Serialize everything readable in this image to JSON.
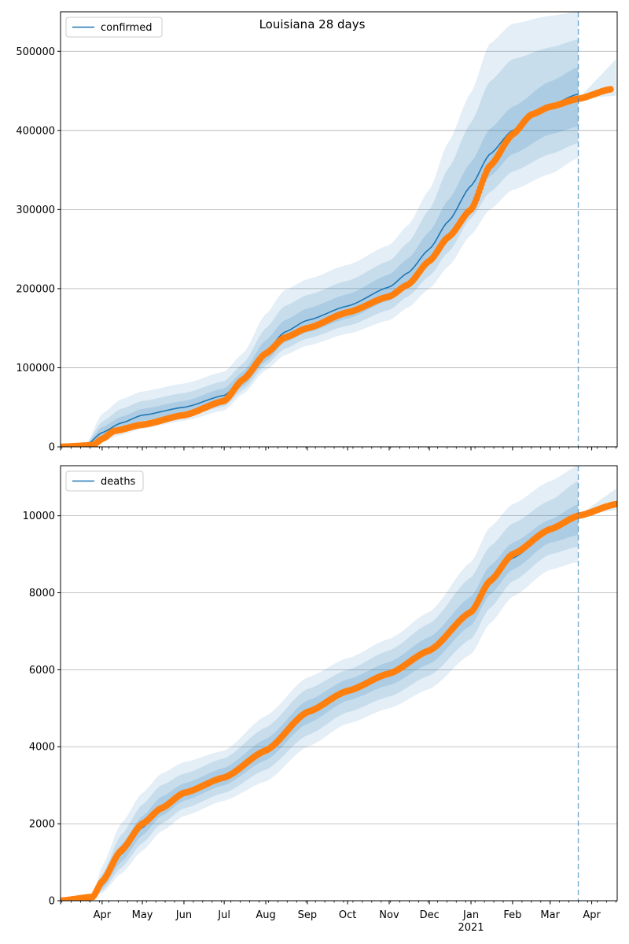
{
  "figure_title": "Louisiana 28 days",
  "colors": {
    "model": "#1f77b4",
    "observed": "#ff7f0e",
    "grid": "#b0b0b0",
    "axes": "#000000"
  },
  "chart_data": [
    {
      "type": "line",
      "title": "Louisiana 28 days",
      "legend": [
        "confirmed"
      ],
      "legend_position": "top-left",
      "grid": "horizontal",
      "ylim": [
        0,
        550000
      ],
      "yticks": [
        0,
        100000,
        200000,
        300000,
        400000,
        500000
      ],
      "ytick_labels": [
        "0",
        "100000",
        "200000",
        "300000",
        "400000",
        "500000"
      ],
      "xticks_shown": false,
      "forecast_start": "2021-03-22",
      "model": {
        "name": "confirmed",
        "x": [
          "2020-03-01",
          "2020-03-20",
          "2020-04-01",
          "2020-04-15",
          "2020-05-01",
          "2020-06-01",
          "2020-07-01",
          "2020-07-15",
          "2020-08-01",
          "2020-08-15",
          "2020-09-01",
          "2020-10-01",
          "2020-11-01",
          "2020-11-15",
          "2020-12-01",
          "2020-12-15",
          "2021-01-01",
          "2021-01-15",
          "2021-02-01",
          "2021-03-01",
          "2021-03-22"
        ],
        "y": [
          0,
          2000,
          18000,
          30000,
          40000,
          50000,
          65000,
          85000,
          120000,
          145000,
          160000,
          178000,
          202000,
          220000,
          250000,
          285000,
          330000,
          370000,
          400000,
          432000,
          446000
        ],
        "bands": [
          {
            "lo": [
              0,
              1000,
              6000,
              15000,
              23000,
              33000,
              46000,
              67000,
              97000,
              116000,
              128000,
              143000,
              160000,
              176000,
              200000,
              228000,
              268000,
              300000,
              325000,
              345000,
              365000
            ],
            "hi": [
              0,
              3500,
              42000,
              60000,
              70000,
              80000,
              95000,
              118000,
              168000,
              198000,
              212000,
              230000,
              255000,
              280000,
              325000,
              385000,
              448000,
              510000,
              535000,
              545000,
              550000
            ]
          },
          {
            "lo": [
              0,
              1300,
              10000,
              20000,
              29000,
              38000,
              51000,
              72000,
              103000,
              124000,
              137000,
              153000,
              173000,
              190000,
              216000,
              246000,
              289000,
              322000,
              348000,
              370000,
              384000
            ],
            "hi": [
              0,
              3000,
              32000,
              48000,
              58000,
              68000,
              83000,
              105000,
              150000,
              178000,
              192000,
              210000,
              235000,
              258000,
              300000,
              352000,
              410000,
              462000,
              490000,
              505000,
              515000
            ]
          },
          {
            "lo": [
              0,
              1600,
              13000,
              24000,
              33000,
              42000,
              56000,
              77000,
              108000,
              132000,
              145000,
              162000,
              185000,
              202000,
              230000,
              262000,
              307000,
              342000,
              370000,
              395000,
              405000
            ],
            "hi": [
              0,
              2500,
              25000,
              38000,
              48000,
              58000,
              74000,
              95000,
              135000,
              160000,
              175000,
              193000,
              218000,
              238000,
              272000,
              312000,
              360000,
              402000,
              430000,
              462000,
              480000
            ]
          }
        ]
      },
      "observed": {
        "x": [
          "2020-03-01",
          "2020-03-25",
          "2020-04-01",
          "2020-04-10",
          "2020-05-01",
          "2020-06-01",
          "2020-07-01",
          "2020-07-15",
          "2020-08-01",
          "2020-08-15",
          "2020-09-01",
          "2020-10-01",
          "2020-11-01",
          "2020-11-15",
          "2020-12-01",
          "2020-12-15",
          "2021-01-01",
          "2021-01-15",
          "2021-02-01",
          "2021-02-15",
          "2021-03-01",
          "2021-03-22",
          "2021-04-15"
        ],
        "y": [
          0,
          2000,
          10000,
          20000,
          28000,
          40000,
          58000,
          85000,
          118000,
          138000,
          150000,
          170000,
          190000,
          205000,
          235000,
          265000,
          300000,
          355000,
          395000,
          420000,
          430000,
          440000,
          452000
        ]
      },
      "forecast_band_after": {
        "x": [
          "2021-03-22",
          "2021-04-19"
        ],
        "lo": [
          440000,
          444000
        ],
        "hi": [
          440000,
          490000
        ]
      }
    },
    {
      "type": "line",
      "legend": [
        "deaths"
      ],
      "legend_position": "top-left",
      "grid": "horizontal",
      "ylim": [
        0,
        11300
      ],
      "yticks": [
        0,
        2000,
        4000,
        6000,
        8000,
        10000
      ],
      "ytick_labels": [
        "0",
        "2000",
        "4000",
        "6000",
        "8000",
        "10000"
      ],
      "xtick_labels": [
        "Apr",
        "May",
        "Jun",
        "Jul",
        "Aug",
        "Sep",
        "Oct",
        "Nov",
        "Dec",
        "Jan\n2021",
        "Feb",
        "Mar",
        "Apr"
      ],
      "xtick_dates": [
        "2020-04-01",
        "2020-05-01",
        "2020-06-01",
        "2020-07-01",
        "2020-08-01",
        "2020-09-01",
        "2020-10-01",
        "2020-11-01",
        "2020-12-01",
        "2021-01-01",
        "2021-02-01",
        "2021-03-01",
        "2021-04-01"
      ],
      "forecast_start": "2021-03-22",
      "model": {
        "name": "deaths",
        "x": [
          "2020-03-01",
          "2020-03-25",
          "2020-04-01",
          "2020-04-15",
          "2020-05-01",
          "2020-05-15",
          "2020-06-01",
          "2020-07-01",
          "2020-08-01",
          "2020-09-01",
          "2020-10-01",
          "2020-11-01",
          "2020-12-01",
          "2021-01-01",
          "2021-01-15",
          "2021-02-01",
          "2021-03-01",
          "2021-03-22"
        ],
        "y": [
          0,
          100,
          400,
          1200,
          1900,
          2400,
          2800,
          3200,
          3900,
          4900,
          5500,
          5900,
          6500,
          7500,
          8300,
          8900,
          9600,
          10000
        ],
        "bands": [
          {
            "lo": [
              0,
              60,
              200,
              700,
              1300,
              1800,
              2200,
              2600,
              3100,
              4000,
              4600,
              5000,
              5500,
              6400,
              7200,
              7900,
              8600,
              8800
            ],
            "hi": [
              0,
              150,
              900,
              2000,
              2800,
              3300,
              3600,
              3900,
              4800,
              5800,
              6300,
              6800,
              7500,
              8800,
              9700,
              10300,
              10900,
              11300
            ]
          },
          {
            "lo": [
              0,
              70,
              260,
              850,
              1500,
              2000,
              2400,
              2800,
              3400,
              4300,
              4900,
              5300,
              5850,
              6800,
              7600,
              8300,
              9000,
              9200
            ],
            "hi": [
              0,
              130,
              700,
              1700,
              2500,
              3000,
              3300,
              3700,
              4500,
              5500,
              6000,
              6500,
              7200,
              8400,
              9200,
              9800,
              10400,
              10900
            ]
          },
          {
            "lo": [
              0,
              85,
              330,
              1000,
              1700,
              2200,
              2600,
              3000,
              3650,
              4600,
              5200,
              5600,
              6150,
              7150,
              7950,
              8600,
              9300,
              9500
            ],
            "hi": [
              0,
              115,
              520,
              1450,
              2200,
              2700,
              3050,
              3450,
              4200,
              5200,
              5750,
              6200,
              6850,
              7900,
              8700,
              9300,
              9900,
              10300
            ]
          }
        ]
      },
      "observed": {
        "x": [
          "2020-03-01",
          "2020-03-25",
          "2020-04-01",
          "2020-04-15",
          "2020-05-01",
          "2020-05-15",
          "2020-06-01",
          "2020-07-01",
          "2020-08-01",
          "2020-09-01",
          "2020-10-01",
          "2020-11-01",
          "2020-12-01",
          "2021-01-01",
          "2021-01-15",
          "2021-02-01",
          "2021-03-01",
          "2021-03-22",
          "2021-04-19"
        ],
        "y": [
          0,
          100,
          500,
          1300,
          2000,
          2400,
          2800,
          3200,
          3900,
          4900,
          5450,
          5900,
          6500,
          7500,
          8300,
          9000,
          9650,
          10000,
          10300
        ]
      },
      "forecast_band_after": {
        "x": [
          "2021-03-22",
          "2021-04-19"
        ],
        "lo": [
          10000,
          10150
        ],
        "hi": [
          10000,
          10700
        ]
      }
    }
  ]
}
